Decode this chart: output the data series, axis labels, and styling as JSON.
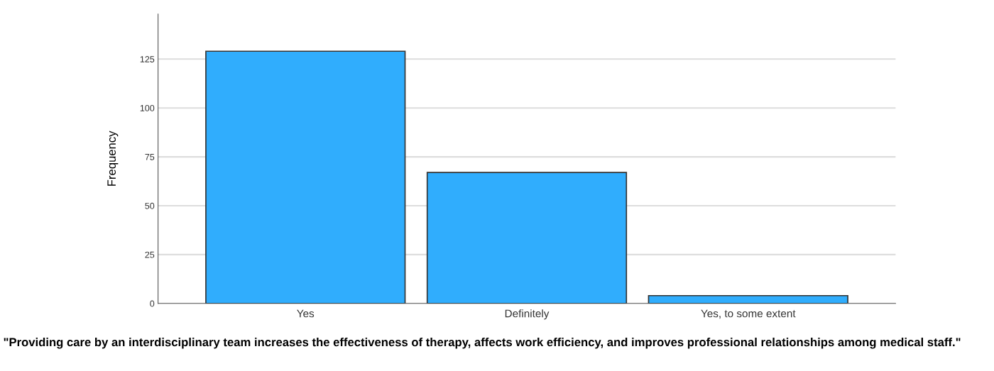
{
  "chart_data": {
    "type": "bar",
    "xlabel": "\"Providing care by an interdisciplinary team increases the effectiveness of therapy, affects work efficiency, and improves professional relationships among medical staff.\"",
    "ylabel": "Frequency",
    "categories": [
      "Yes",
      "Definitely",
      "Yes, to some extent"
    ],
    "values": [
      129,
      67,
      4
    ],
    "color": "#30adfd",
    "ylim": [
      0,
      148
    ],
    "yticks": [
      0,
      25,
      50,
      75,
      100,
      125
    ],
    "grid": "y"
  }
}
